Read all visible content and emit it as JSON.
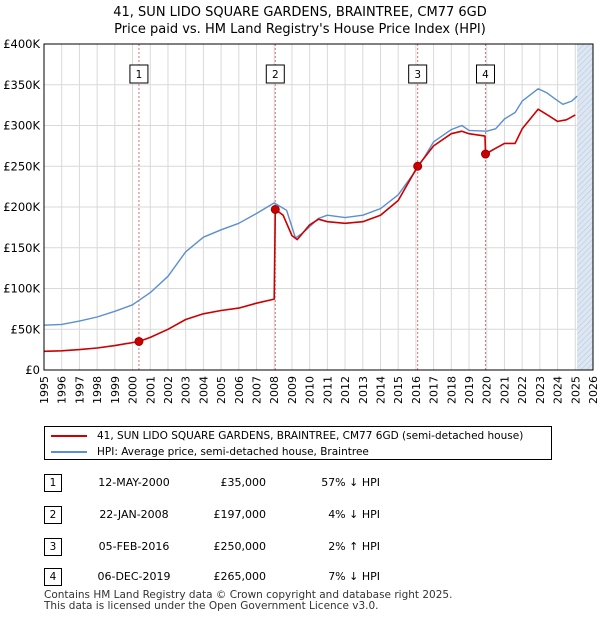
{
  "title_line1": "41, SUN LIDO SQUARE GARDENS, BRAINTREE, CM77 6GD",
  "title_line2": "Price paid vs. HM Land Registry's House Price Index (HPI)",
  "legend": {
    "property": "41, SUN LIDO SQUARE GARDENS, BRAINTREE, CM77 6GD (semi-detached house)",
    "hpi": "HPI: Average price, semi-detached house, Braintree"
  },
  "colors": {
    "property": "#cc0000",
    "hpi": "#5b8fd0",
    "grid": "#d9d9d9",
    "shade": "#dde6f3",
    "marker_line": "#e07070"
  },
  "sales": [
    {
      "num": "1",
      "date": "12-MAY-2000",
      "price": "£35,000",
      "hpi": "57% ↓ HPI"
    },
    {
      "num": "2",
      "date": "22-JAN-2008",
      "price": "£197,000",
      "hpi": "4% ↓ HPI"
    },
    {
      "num": "3",
      "date": "05-FEB-2016",
      "price": "£250,000",
      "hpi": "2% ↑ HPI"
    },
    {
      "num": "4",
      "date": "06-DEC-2019",
      "price": "£265,000",
      "hpi": "7% ↓ HPI"
    }
  ],
  "footer_line1": "Contains HM Land Registry data © Crown copyright and database right 2025.",
  "footer_line2": "This data is licensed under the Open Government Licence v3.0.",
  "chart_data": {
    "type": "line",
    "xlim": [
      1995,
      2026
    ],
    "ylim": [
      0,
      400000
    ],
    "y_ticks": [
      0,
      50000,
      100000,
      150000,
      200000,
      250000,
      300000,
      350000,
      400000
    ],
    "y_tick_labels": [
      "£0",
      "£50K",
      "£100K",
      "£150K",
      "£200K",
      "£250K",
      "£300K",
      "£350K",
      "£400K"
    ],
    "x_ticks": [
      1995,
      1996,
      1997,
      1998,
      1999,
      2000,
      2001,
      2002,
      2003,
      2004,
      2005,
      2006,
      2007,
      2008,
      2009,
      2010,
      2011,
      2012,
      2013,
      2014,
      2015,
      2016,
      2017,
      2018,
      2019,
      2020,
      2021,
      2022,
      2023,
      2024,
      2025,
      2026
    ],
    "grid": true,
    "future_shade_from": 2025.1,
    "series": [
      {
        "name": "41, SUN LIDO SQUARE GARDENS, BRAINTREE, CM77 6GD (semi-detached house)",
        "points": [
          [
            1995.0,
            23000
          ],
          [
            1996.0,
            23500
          ],
          [
            1997.0,
            25000
          ],
          [
            1998.0,
            27000
          ],
          [
            1999.0,
            30000
          ],
          [
            2000.36,
            35000
          ],
          [
            2001.0,
            40000
          ],
          [
            2002.0,
            50000
          ],
          [
            2003.0,
            62000
          ],
          [
            2004.0,
            69000
          ],
          [
            2005.0,
            73000
          ],
          [
            2006.0,
            76000
          ],
          [
            2007.0,
            82000
          ],
          [
            2008.0,
            87000
          ],
          [
            2008.06,
            197000
          ],
          [
            2008.5,
            190000
          ],
          [
            2009.0,
            165000
          ],
          [
            2009.3,
            160000
          ],
          [
            2010.0,
            178000
          ],
          [
            2010.5,
            185000
          ],
          [
            2011.0,
            182000
          ],
          [
            2012.0,
            180000
          ],
          [
            2013.0,
            182000
          ],
          [
            2014.0,
            190000
          ],
          [
            2015.0,
            208000
          ],
          [
            2016.1,
            250000
          ],
          [
            2017.0,
            275000
          ],
          [
            2018.0,
            290000
          ],
          [
            2018.6,
            293000
          ],
          [
            2019.0,
            290000
          ],
          [
            2019.9,
            287000
          ],
          [
            2019.93,
            265000
          ],
          [
            2020.5,
            272000
          ],
          [
            2021.0,
            278000
          ],
          [
            2021.6,
            278000
          ],
          [
            2022.0,
            296000
          ],
          [
            2022.9,
            320000
          ],
          [
            2023.5,
            312000
          ],
          [
            2024.0,
            305000
          ],
          [
            2024.5,
            307000
          ],
          [
            2025.0,
            313000
          ]
        ]
      },
      {
        "name": "HPI: Average price, semi-detached house, Braintree",
        "points": [
          [
            1995.0,
            55000
          ],
          [
            1996.0,
            56000
          ],
          [
            1997.0,
            60000
          ],
          [
            1998.0,
            65000
          ],
          [
            1999.0,
            72000
          ],
          [
            2000.0,
            80000
          ],
          [
            2001.0,
            95000
          ],
          [
            2002.0,
            115000
          ],
          [
            2003.0,
            145000
          ],
          [
            2004.0,
            163000
          ],
          [
            2005.0,
            172000
          ],
          [
            2006.0,
            180000
          ],
          [
            2007.0,
            192000
          ],
          [
            2008.0,
            205000
          ],
          [
            2008.7,
            196000
          ],
          [
            2009.2,
            162000
          ],
          [
            2009.6,
            168000
          ],
          [
            2010.5,
            186000
          ],
          [
            2011.0,
            190000
          ],
          [
            2012.0,
            187000
          ],
          [
            2013.0,
            190000
          ],
          [
            2014.0,
            198000
          ],
          [
            2015.0,
            215000
          ],
          [
            2016.0,
            245000
          ],
          [
            2016.5,
            262000
          ],
          [
            2017.0,
            280000
          ],
          [
            2018.0,
            295000
          ],
          [
            2018.6,
            300000
          ],
          [
            2019.0,
            294000
          ],
          [
            2020.0,
            293000
          ],
          [
            2020.5,
            296000
          ],
          [
            2021.0,
            308000
          ],
          [
            2021.6,
            316000
          ],
          [
            2022.0,
            330000
          ],
          [
            2022.9,
            345000
          ],
          [
            2023.4,
            340000
          ],
          [
            2023.9,
            332000
          ],
          [
            2024.3,
            326000
          ],
          [
            2024.8,
            330000
          ],
          [
            2025.1,
            336000
          ]
        ]
      }
    ],
    "sale_markers": [
      {
        "label": "1",
        "x": 2000.36,
        "y": 35000
      },
      {
        "label": "2",
        "x": 2008.06,
        "y": 197000
      },
      {
        "label": "3",
        "x": 2016.1,
        "y": 250000
      },
      {
        "label": "4",
        "x": 2019.93,
        "y": 265000
      }
    ]
  }
}
